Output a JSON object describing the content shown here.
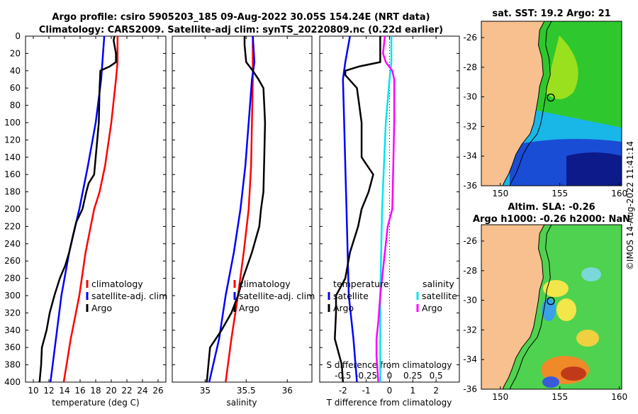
{
  "header": {
    "line1": "Argo profile: csiro 5905203_185 09-Aug-2022 30.05S 154.24E (NRT data)",
    "line2": "Climatology: CARS2009. Satellite-adj clim: synTS_20220809.nc (0.22d earlier)"
  },
  "side_label": "©IMOS 14-Aug-2022 11:41:14",
  "colors": {
    "climatology": "#ff0000",
    "satellite": "#0000ff",
    "argo": "#000000",
    "sal_satellite": "#00e5ee",
    "sal_argo": "#ff00ff",
    "land": "#f7c08e"
  },
  "chart_data": [
    {
      "type": "line",
      "title": "",
      "xlabel": "temperature (deg C)",
      "ylabel": "depth",
      "xlim": [
        9,
        27
      ],
      "ylim": [
        400,
        0
      ],
      "xticks": [
        "10",
        "12",
        "14",
        "16",
        "18",
        "20",
        "22",
        "24",
        "26"
      ],
      "yticks": [
        "0",
        "20",
        "40",
        "60",
        "80",
        "100",
        "120",
        "140",
        "160",
        "180",
        "200",
        "220",
        "240",
        "260",
        "280",
        "300",
        "320",
        "340",
        "360",
        "380",
        "400"
      ],
      "legend": [
        "climatology",
        "satellite-adj. clim",
        "Argo"
      ],
      "series": [
        {
          "name": "climatology",
          "color": "#ff0000",
          "depth": [
            0,
            30,
            50,
            100,
            150,
            180,
            200,
            250,
            300,
            350,
            400
          ],
          "values": [
            20.8,
            20.8,
            20.6,
            20.0,
            19.2,
            18.5,
            17.8,
            16.7,
            15.9,
            14.8,
            13.9
          ]
        },
        {
          "name": "satellite-adj. clim",
          "color": "#0000ff",
          "depth": [
            0,
            50,
            100,
            150,
            200,
            250,
            300,
            350,
            400
          ],
          "values": [
            19.1,
            18.7,
            18.0,
            17.0,
            15.9,
            14.6,
            13.6,
            12.9,
            12.2
          ]
        },
        {
          "name": "Argo",
          "color": "#000000",
          "depth": [
            0,
            5,
            20,
            30,
            35,
            40,
            60,
            100,
            140,
            160,
            170,
            180,
            200,
            215,
            230,
            250,
            265,
            280,
            300,
            320,
            340,
            360,
            380,
            400
          ],
          "values": [
            20.4,
            20.3,
            20.6,
            20.6,
            19.8,
            18.6,
            18.5,
            18.4,
            18.0,
            17.8,
            17.1,
            16.8,
            16.3,
            15.5,
            15.1,
            14.6,
            14.1,
            13.4,
            12.7,
            12.1,
            11.7,
            11.1,
            11.0,
            10.8
          ]
        }
      ]
    },
    {
      "type": "line",
      "xlabel": "salinity",
      "xlim": [
        34.6,
        36.3
      ],
      "ylim": [
        400,
        0
      ],
      "xticks": [
        "35",
        "35.5",
        "36"
      ],
      "legend": [
        "climatology",
        "satellite-adj. clim",
        "Argo"
      ],
      "series": [
        {
          "name": "climatology",
          "color": "#ff0000",
          "depth": [
            0,
            50,
            100,
            150,
            200,
            250,
            300,
            350,
            400
          ],
          "values": [
            35.58,
            35.58,
            35.57,
            35.56,
            35.53,
            35.47,
            35.4,
            35.32,
            35.25
          ]
        },
        {
          "name": "satellite-adj. clim",
          "color": "#0000ff",
          "depth": [
            0,
            30,
            50,
            100,
            150,
            200,
            250,
            300,
            350,
            400
          ],
          "values": [
            35.58,
            35.6,
            35.57,
            35.53,
            35.49,
            35.43,
            35.35,
            35.25,
            35.17,
            35.05
          ]
        },
        {
          "name": "Argo",
          "color": "#000000",
          "depth": [
            0,
            10,
            30,
            40,
            50,
            60,
            80,
            100,
            140,
            180,
            200,
            220,
            250,
            280,
            300,
            320,
            340,
            360,
            380,
            400
          ],
          "values": [
            35.48,
            35.48,
            35.5,
            35.58,
            35.65,
            35.71,
            35.72,
            35.73,
            35.72,
            35.71,
            35.68,
            35.66,
            35.57,
            35.46,
            35.4,
            35.32,
            35.2,
            35.06,
            35.04,
            35.02
          ]
        }
      ]
    },
    {
      "type": "line",
      "xlabel": "T difference from climatology",
      "xlabel2": "S difference from climatology",
      "xlim": [
        -3,
        3
      ],
      "xlim2": [
        -0.75,
        0.75
      ],
      "ylim": [
        400,
        0
      ],
      "xticks": [
        "-2",
        "-1",
        "0",
        "1",
        "2"
      ],
      "xticks2": [
        "-0.5",
        "-0.25",
        "0",
        "0.25",
        "0.5"
      ],
      "legend_titles": [
        "temperature",
        "salinity"
      ],
      "legend_left": [
        "satellite",
        "Argo"
      ],
      "legend_right": [
        "satellite",
        "Argo"
      ],
      "series": [
        {
          "name": "T satellite",
          "color": "#0000ff",
          "axis": "T",
          "depth": [
            0,
            30,
            50,
            100,
            150,
            200,
            250,
            300,
            350,
            400
          ],
          "values": [
            -1.7,
            -1.9,
            -2.0,
            -1.95,
            -1.9,
            -1.85,
            -1.8,
            -1.75,
            -1.55,
            -1.4
          ]
        },
        {
          "name": "T Argo",
          "color": "#000000",
          "axis": "T",
          "depth": [
            0,
            30,
            35,
            40,
            45,
            60,
            100,
            140,
            160,
            180,
            200,
            220,
            250,
            280,
            300,
            320,
            350,
            380,
            400
          ],
          "values": [
            -0.4,
            -0.4,
            -1.3,
            -1.9,
            -1.9,
            -1.4,
            -1.2,
            -1.2,
            -0.7,
            -0.9,
            -1.2,
            -1.35,
            -1.7,
            -1.9,
            -2.3,
            -2.3,
            -2.35,
            -2.05,
            -2.0
          ]
        },
        {
          "name": "S satellite",
          "color": "#00e5ee",
          "axis": "S",
          "depth": [
            0,
            30,
            50,
            100,
            150,
            200,
            250,
            300,
            350,
            400
          ],
          "values": [
            0.02,
            0.02,
            0.0,
            -0.04,
            -0.06,
            -0.08,
            -0.09,
            -0.1,
            -0.1,
            -0.1
          ]
        },
        {
          "name": "S Argo",
          "color": "#ff00ff",
          "axis": "S",
          "depth": [
            0,
            10,
            20,
            30,
            40,
            50,
            100,
            150,
            200,
            220,
            260,
            300,
            330,
            350,
            370,
            400
          ],
          "values": [
            -0.05,
            -0.06,
            -0.07,
            -0.04,
            0.03,
            0.05,
            0.05,
            0.04,
            0.03,
            -0.02,
            -0.06,
            -0.1,
            -0.12,
            -0.14,
            -0.14,
            -0.12
          ]
        }
      ]
    },
    {
      "type": "heatmap",
      "title": "sat. SST: 19.2 Argo: 21",
      "xlim": [
        148.4,
        160.2
      ],
      "ylim": [
        -36,
        -24.9
      ],
      "xticks": [
        "150",
        "155",
        "160"
      ],
      "yticks": [
        "-26",
        "-28",
        "-30",
        "-32",
        "-34",
        "-36"
      ],
      "marker_lon": 154.24,
      "marker_lat": -30.05
    },
    {
      "type": "heatmap",
      "title": "Altim. SLA: -0.26",
      "subtitle": "Argo h1000: -0.26 h2000: NaN",
      "xlim": [
        148.4,
        160.2
      ],
      "ylim": [
        -36,
        -24.9
      ],
      "xticks": [
        "150",
        "155",
        "160"
      ],
      "yticks": [
        "-26",
        "-28",
        "-30",
        "-32",
        "-34",
        "-36"
      ],
      "marker_lon": 154.24,
      "marker_lat": -30.05
    }
  ]
}
